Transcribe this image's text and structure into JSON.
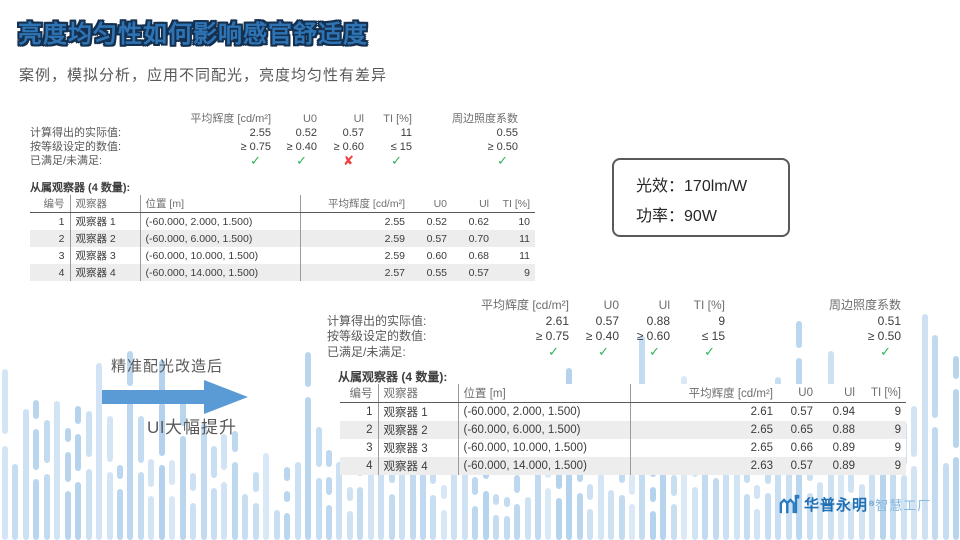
{
  "slide": {
    "title": "亮度均匀性如何影响感官舒适度",
    "subtitle": "案例，模拟分析，应用不同配光，亮度均匀性有差异"
  },
  "spec_box": {
    "lines": [
      {
        "label": "光效：",
        "value": "170lm/W"
      },
      {
        "label": "功率：",
        "value": "90W"
      }
    ]
  },
  "annotation": {
    "line1": "精准配光改造后",
    "line2": "Ul大幅提升"
  },
  "logo": {
    "brand": "华普永明",
    "reg_mark": "®",
    "suffix": "智慧工厂"
  },
  "blocks": [
    {
      "summary": {
        "col_headers": [
          "平均辉度  [cd/m²]",
          "U0",
          "Ul",
          "TI [%]",
          "周边照度系数"
        ],
        "actual": {
          "label": "计算得出的实际值:",
          "values": [
            "2.55",
            "0.52",
            "0.57",
            "11",
            "0.55"
          ]
        },
        "target": {
          "label": "按等级设定的数值:",
          "values": [
            "≥ 0.75",
            "≥ 0.40",
            "≥ 0.60",
            "≤ 15",
            "≥ 0.50"
          ]
        },
        "fulfilled": {
          "label": "已满足/未满足:",
          "checks": [
            {
              "glyph": "✓",
              "state": "pass"
            },
            {
              "glyph": "✓",
              "state": "pass"
            },
            {
              "glyph": "✘",
              "state": "fail"
            },
            {
              "glyph": "✓",
              "state": "pass"
            },
            {
              "glyph": "✓",
              "state": "pass"
            }
          ]
        }
      },
      "observer_title": "从属观察器  (4 数量):",
      "table": {
        "headers": [
          "编号",
          "观察器",
          "位置  [m]",
          "平均辉度  [cd/m²]",
          "U0",
          "Ul",
          "TI [%]"
        ],
        "rows": [
          [
            "1",
            "观察器  1",
            "(-60.000, 2.000, 1.500)",
            "2.55",
            "0.52",
            "0.62",
            "10"
          ],
          [
            "2",
            "观察器  2",
            "(-60.000, 6.000, 1.500)",
            "2.59",
            "0.57",
            "0.70",
            "11"
          ],
          [
            "3",
            "观察器  3",
            "(-60.000, 10.000, 1.500)",
            "2.59",
            "0.60",
            "0.68",
            "11"
          ],
          [
            "4",
            "观察器  4",
            "(-60.000, 14.000, 1.500)",
            "2.57",
            "0.55",
            "0.57",
            "9"
          ]
        ]
      }
    },
    {
      "summary": {
        "col_headers": [
          "平均辉度  [cd/m²]",
          "U0",
          "Ul",
          "TI [%]",
          "周边照度系数"
        ],
        "actual": {
          "label": "计算得出的实际值:",
          "values": [
            "2.61",
            "0.57",
            "0.88",
            "9",
            "0.51"
          ]
        },
        "target": {
          "label": "按等级设定的数值:",
          "values": [
            "≥ 0.75",
            "≥ 0.40",
            "≥ 0.60",
            "≤ 15",
            "≥ 0.50"
          ]
        },
        "fulfilled": {
          "label": "已满足/未满足:",
          "checks": [
            {
              "glyph": "✓",
              "state": "pass"
            },
            {
              "glyph": "✓",
              "state": "pass"
            },
            {
              "glyph": "✓",
              "state": "pass"
            },
            {
              "glyph": "✓",
              "state": "pass"
            },
            {
              "glyph": "✓",
              "state": "pass"
            }
          ]
        }
      },
      "observer_title": "从属观察器  (4 数量):",
      "table": {
        "headers": [
          "编号",
          "观察器",
          "位置  [m]",
          "平均辉度  [cd/m²]",
          "U0",
          "Ul",
          "TI [%]"
        ],
        "rows": [
          [
            "1",
            "观察器  1",
            "(-60.000, 2.000, 1.500)",
            "2.61",
            "0.57",
            "0.94",
            "9"
          ],
          [
            "2",
            "观察器  2",
            "(-60.000, 6.000, 1.500)",
            "2.65",
            "0.65",
            "0.88",
            "9"
          ],
          [
            "3",
            "观察器  3",
            "(-60.000, 10.000, 1.500)",
            "2.65",
            "0.66",
            "0.89",
            "9"
          ],
          [
            "4",
            "观察器  4",
            "(-60.000, 14.000, 1.500)",
            "2.63",
            "0.57",
            "0.89",
            "9"
          ]
        ]
      }
    }
  ],
  "colors": {
    "title_fill": "#2E74B5",
    "title_outline": "#15304F",
    "arrow_blue": "#5B9BD5",
    "check_green": "#2FB457",
    "cross_red": "#F03E3E",
    "bg_bar_blue": "#B0D0EC",
    "logo_blue": "#1F6FB5",
    "logo_light_blue": "#85B7DF"
  }
}
